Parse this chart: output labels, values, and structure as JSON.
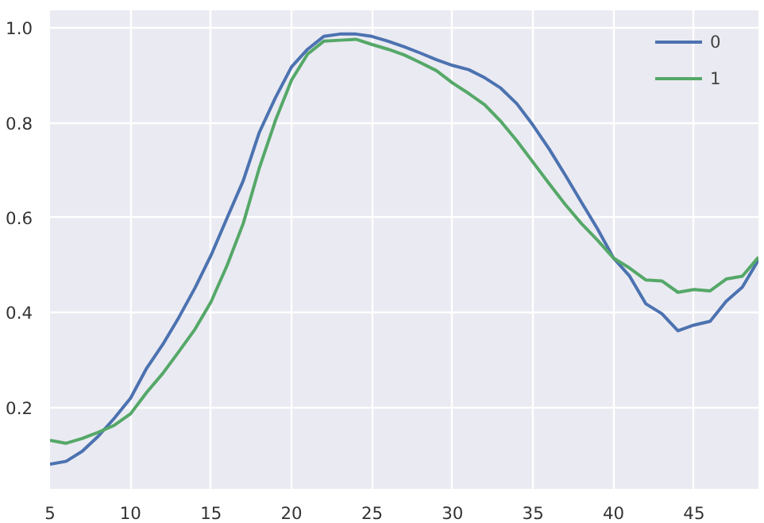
{
  "chart_data": {
    "type": "line",
    "x": [
      5,
      6,
      7,
      8,
      9,
      10,
      11,
      12,
      13,
      14,
      15,
      16,
      17,
      18,
      19,
      20,
      21,
      22,
      23,
      24,
      25,
      26,
      27,
      28,
      29,
      30,
      31,
      32,
      33,
      34,
      35,
      36,
      37,
      38,
      39,
      40,
      41,
      42,
      43,
      44,
      45,
      46,
      47,
      48,
      49
    ],
    "series": [
      {
        "name": "0",
        "color": "#4c72b0",
        "values": [
          0.081,
          0.087,
          0.108,
          0.14,
          0.178,
          0.22,
          0.283,
          0.333,
          0.39,
          0.452,
          0.521,
          0.6,
          0.678,
          0.78,
          0.853,
          0.918,
          0.955,
          0.982,
          0.987,
          0.987,
          0.982,
          0.972,
          0.96,
          0.947,
          0.933,
          0.921,
          0.912,
          0.895,
          0.873,
          0.84,
          0.795,
          0.745,
          0.69,
          0.633,
          0.577,
          0.515,
          0.477,
          0.419,
          0.398,
          0.362,
          0.374,
          0.382,
          0.424,
          0.454,
          0.511
        ]
      },
      {
        "name": "1",
        "color": "#55a868",
        "values": [
          0.131,
          0.125,
          0.135,
          0.148,
          0.163,
          0.187,
          0.232,
          0.272,
          0.318,
          0.365,
          0.423,
          0.5,
          0.588,
          0.705,
          0.805,
          0.89,
          0.945,
          0.972,
          0.974,
          0.976,
          0.965,
          0.955,
          0.943,
          0.927,
          0.91,
          0.884,
          0.862,
          0.838,
          0.803,
          0.762,
          0.717,
          0.672,
          0.628,
          0.588,
          0.553,
          0.515,
          0.494,
          0.469,
          0.467,
          0.443,
          0.449,
          0.446,
          0.471,
          0.477,
          0.517
        ]
      }
    ],
    "xlim": [
      5,
      49
    ],
    "ylim": [
      0.029,
      1.037
    ],
    "xticks": [
      5,
      10,
      15,
      20,
      25,
      30,
      35,
      40,
      45
    ],
    "yticks": [
      0.2,
      0.4,
      0.6,
      0.8,
      {
        "value": 1,
        "label": "1.0"
      }
    ],
    "grid": true,
    "legend": "top right",
    "line_style": "solid",
    "marker": "none"
  }
}
